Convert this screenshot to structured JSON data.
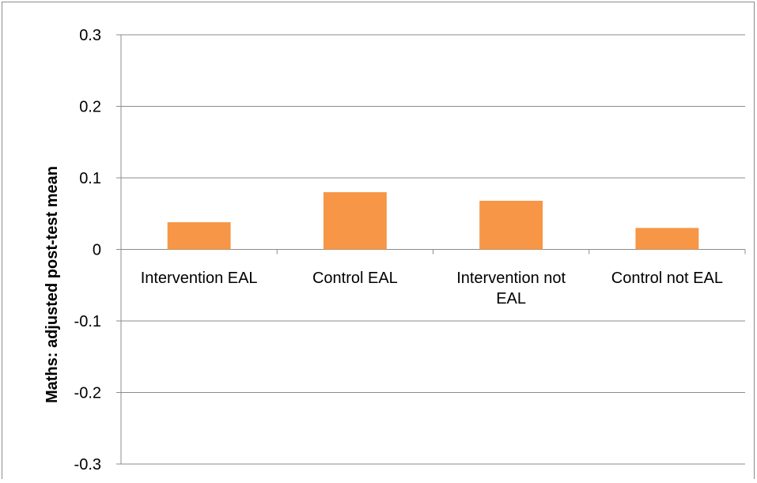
{
  "chart_data": {
    "type": "bar",
    "title": "",
    "xlabel": "",
    "ylabel": "Maths: adjusted post-test mean",
    "ylim": [
      -0.3,
      0.3
    ],
    "yticks": [
      "0.3",
      "0.2",
      "0.1",
      "0",
      "-0.1",
      "-0.2",
      "-0.3"
    ],
    "ytick_values": [
      0.3,
      0.2,
      0.1,
      0,
      -0.1,
      -0.2,
      -0.3
    ],
    "grid": true,
    "legend": "none",
    "bar_color": "#F79646",
    "categories": [
      [
        "Intervention EAL"
      ],
      [
        "Control EAL"
      ],
      [
        "Intervention not",
        "EAL"
      ],
      [
        "Control not EAL"
      ]
    ],
    "values": [
      0.038,
      0.08,
      0.068,
      0.03
    ]
  }
}
